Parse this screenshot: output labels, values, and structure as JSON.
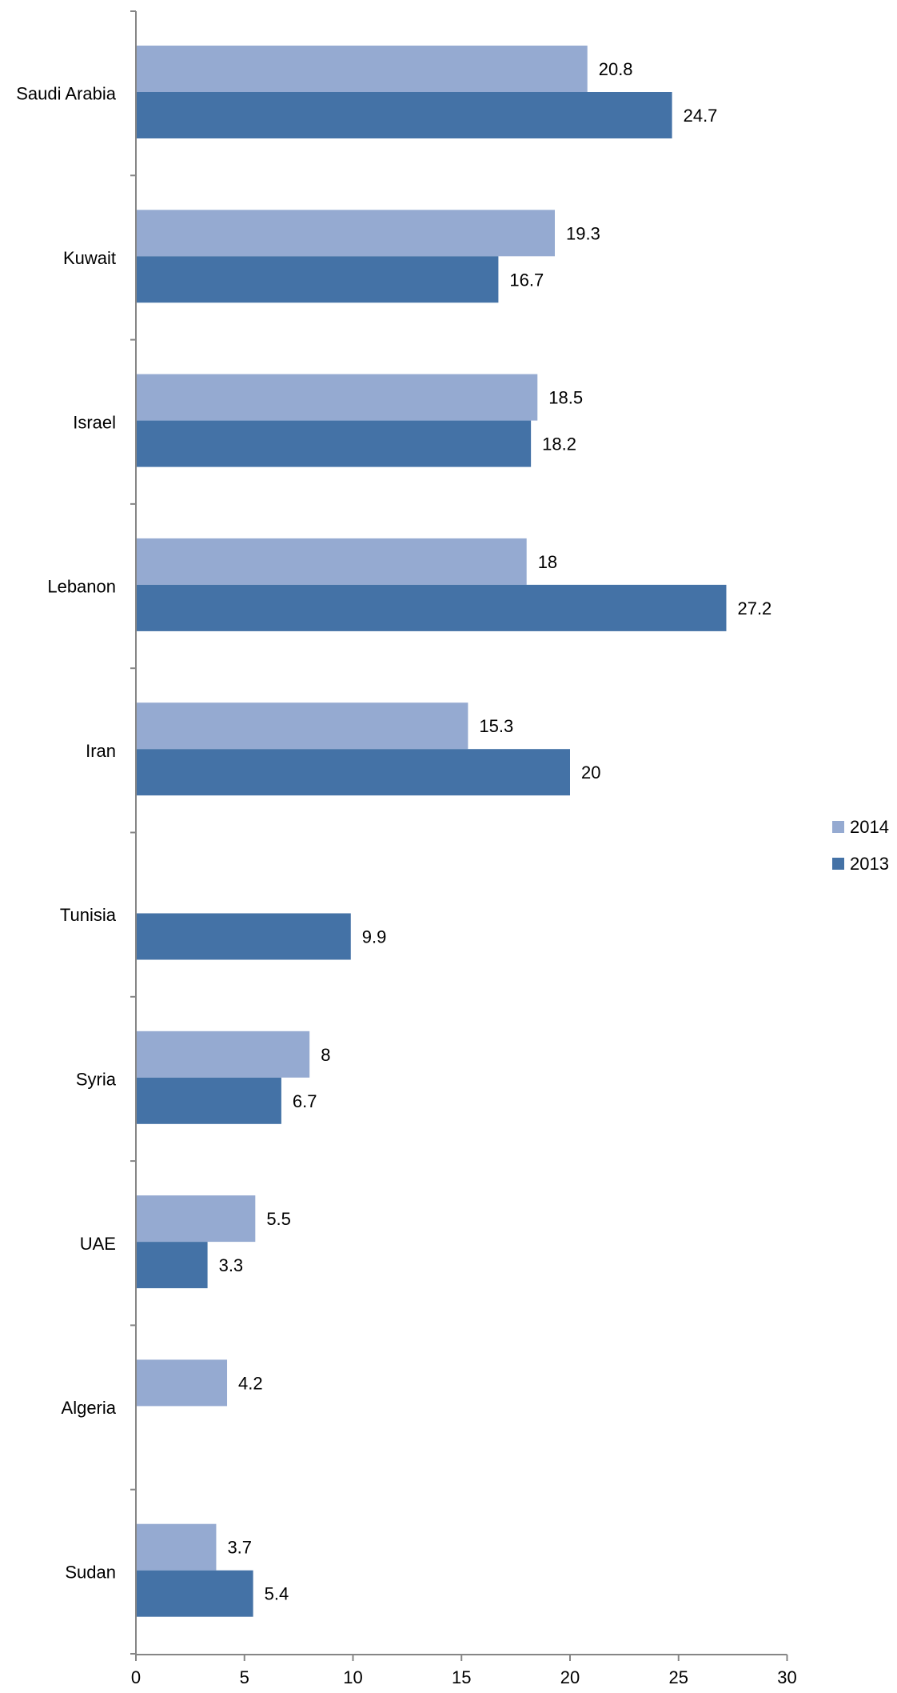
{
  "chart_data": {
    "type": "bar",
    "orientation": "horizontal",
    "categories": [
      "Saudi Arabia",
      "Kuwait",
      "Israel",
      "Lebanon",
      "Iran",
      "Tunisia",
      "Syria",
      "UAE",
      "Algeria",
      "Sudan"
    ],
    "series": [
      {
        "name": "2014",
        "color": "#95AAD1",
        "values": [
          20.8,
          19.3,
          18.5,
          18,
          15.3,
          null,
          8,
          5.5,
          4.2,
          3.7
        ],
        "labels": [
          "20.8",
          "19.3",
          "18.5",
          "18",
          "15.3",
          null,
          "8",
          "5.5",
          "4.2",
          "3.7"
        ]
      },
      {
        "name": "2013",
        "color": "#4472A6",
        "values": [
          24.7,
          16.7,
          18.2,
          27.2,
          20,
          9.9,
          6.7,
          3.3,
          null,
          5.4
        ],
        "labels": [
          "24.7",
          "16.7",
          "18.2",
          "27.2",
          "20",
          "9.9",
          "6.7",
          "3.3",
          null,
          "5.4"
        ]
      }
    ],
    "xlim": [
      0,
      30
    ],
    "xticks": [
      "0",
      "5",
      "10",
      "15",
      "20",
      "25",
      "30"
    ],
    "xtick_values": [
      0,
      5,
      10,
      15,
      20,
      25,
      30
    ],
    "title": "",
    "xlabel": "",
    "ylabel": "",
    "grid": false,
    "legend": "right"
  }
}
